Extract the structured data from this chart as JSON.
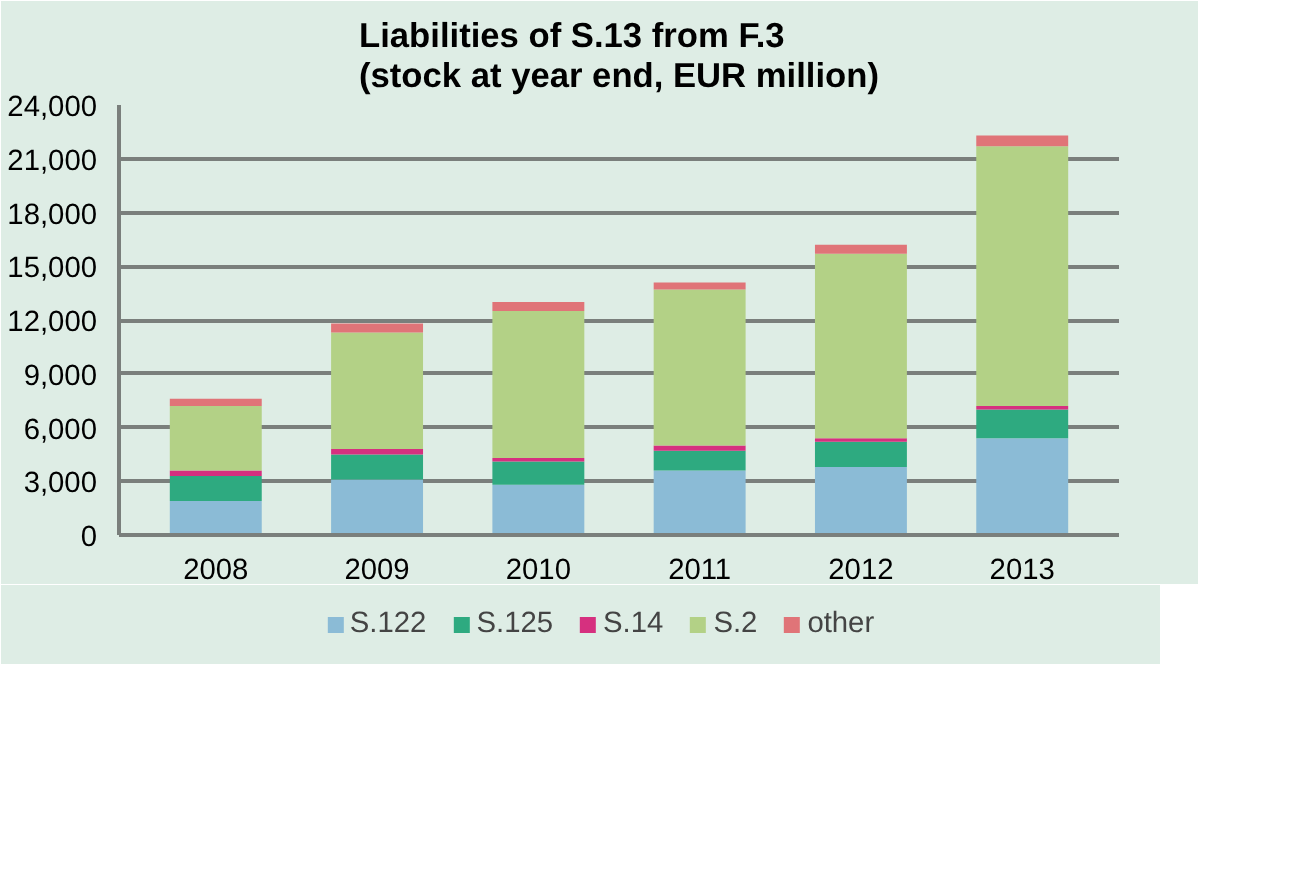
{
  "chart_data": {
    "type": "bar",
    "stacked": true,
    "title": "Liabilities of S.13 from F.3\n(stock at year end, EUR million)",
    "categories": [
      "2008",
      "2009",
      "2010",
      "2011",
      "2012",
      "2013"
    ],
    "series": [
      {
        "name": "S.122",
        "color": "#8bbbd6",
        "values": [
          1900,
          3100,
          2800,
          3600,
          3800,
          5400
        ]
      },
      {
        "name": "S.125",
        "color": "#2eaa80",
        "values": [
          1400,
          1400,
          1300,
          1100,
          1400,
          1600
        ]
      },
      {
        "name": "S.14",
        "color": "#d6307f",
        "values": [
          300,
          300,
          200,
          300,
          200,
          200
        ]
      },
      {
        "name": "S.2",
        "color": "#b3d186",
        "values": [
          3600,
          6500,
          8200,
          8700,
          10300,
          14500
        ]
      },
      {
        "name": "other",
        "color": "#e07478",
        "values": [
          400,
          500,
          500,
          400,
          500,
          600
        ]
      }
    ],
    "ylim": [
      0,
      24000
    ],
    "yticks": [
      {
        "value": 0,
        "label": "0"
      },
      {
        "value": 3000,
        "label": "3,000"
      },
      {
        "value": 6000,
        "label": "6,000"
      },
      {
        "value": 9000,
        "label": "9,000"
      },
      {
        "value": 12000,
        "label": "12,000"
      },
      {
        "value": 15000,
        "label": "15,000"
      },
      {
        "value": 18000,
        "label": "18,000"
      },
      {
        "value": 21000,
        "label": "21,000"
      },
      {
        "value": 24000,
        "label": "24,000"
      }
    ],
    "grid": "y",
    "legend": "bottom"
  }
}
